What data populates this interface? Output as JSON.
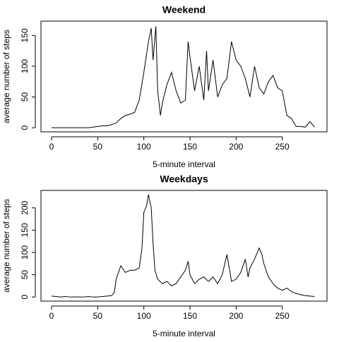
{
  "chart_data": [
    {
      "type": "line",
      "title": "Weekend",
      "xlabel": "5-minute interval",
      "ylabel": "average number of steps",
      "xlim": [
        -11.48,
        298.48
      ],
      "xticks": [
        0,
        50,
        100,
        150,
        200,
        250
      ],
      "ylim": [
        -6.7,
        173.3
      ],
      "yticks": [
        0,
        50,
        100,
        150
      ],
      "series": [
        {
          "color": "#000000",
          "x": [
            0,
            5,
            10,
            15,
            20,
            25,
            30,
            35,
            40,
            45,
            50,
            55,
            60,
            65,
            70,
            75,
            80,
            85,
            90,
            95,
            100,
            105,
            108,
            110,
            113,
            115,
            118,
            120,
            125,
            130,
            135,
            140,
            145,
            148,
            150,
            155,
            160,
            165,
            168,
            170,
            175,
            180,
            185,
            190,
            195,
            200,
            205,
            210,
            215,
            220,
            225,
            230,
            235,
            240,
            245,
            250,
            255,
            260,
            265,
            270,
            275,
            280,
            285
          ],
          "values": [
            0,
            0,
            0,
            0,
            0,
            0,
            0,
            0,
            0,
            1,
            2,
            3,
            3,
            5,
            8,
            15,
            20,
            22,
            25,
            45,
            90,
            140,
            162,
            110,
            165,
            60,
            20,
            40,
            70,
            90,
            60,
            40,
            45,
            140,
            115,
            60,
            100,
            45,
            125,
            60,
            110,
            50,
            70,
            80,
            140,
            110,
            100,
            80,
            50,
            100,
            65,
            55,
            75,
            85,
            65,
            60,
            20,
            15,
            2,
            2,
            1,
            10,
            1
          ]
        }
      ]
    },
    {
      "type": "line",
      "title": "Weekdays",
      "xlabel": "5-minute interval",
      "ylabel": "average number of steps",
      "xlim": [
        -11.48,
        298.48
      ],
      "xticks": [
        0,
        50,
        100,
        150,
        200,
        250
      ],
      "ylim": [
        -9.2,
        239.2
      ],
      "yticks": [
        0,
        50,
        100,
        150,
        200
      ],
      "series": [
        {
          "color": "#000000",
          "x": [
            0,
            5,
            10,
            15,
            20,
            25,
            30,
            35,
            40,
            45,
            50,
            55,
            60,
            65,
            68,
            70,
            75,
            80,
            85,
            90,
            95,
            98,
            100,
            103,
            105,
            108,
            110,
            112,
            115,
            120,
            125,
            130,
            135,
            140,
            145,
            148,
            150,
            155,
            160,
            165,
            170,
            175,
            180,
            185,
            190,
            193,
            195,
            200,
            205,
            210,
            213,
            215,
            220,
            225,
            228,
            230,
            235,
            240,
            245,
            250,
            255,
            260,
            265,
            270,
            275,
            280,
            285
          ],
          "values": [
            2,
            1,
            0,
            1,
            0,
            0,
            0,
            0,
            1,
            0,
            0,
            1,
            2,
            3,
            10,
            40,
            70,
            55,
            60,
            60,
            65,
            110,
            190,
            205,
            230,
            200,
            120,
            60,
            40,
            30,
            35,
            25,
            30,
            45,
            60,
            80,
            50,
            30,
            40,
            45,
            35,
            45,
            30,
            50,
            95,
            60,
            35,
            40,
            55,
            85,
            45,
            65,
            85,
            110,
            95,
            75,
            45,
            30,
            20,
            15,
            20,
            12,
            8,
            5,
            3,
            2,
            1
          ]
        }
      ]
    }
  ]
}
